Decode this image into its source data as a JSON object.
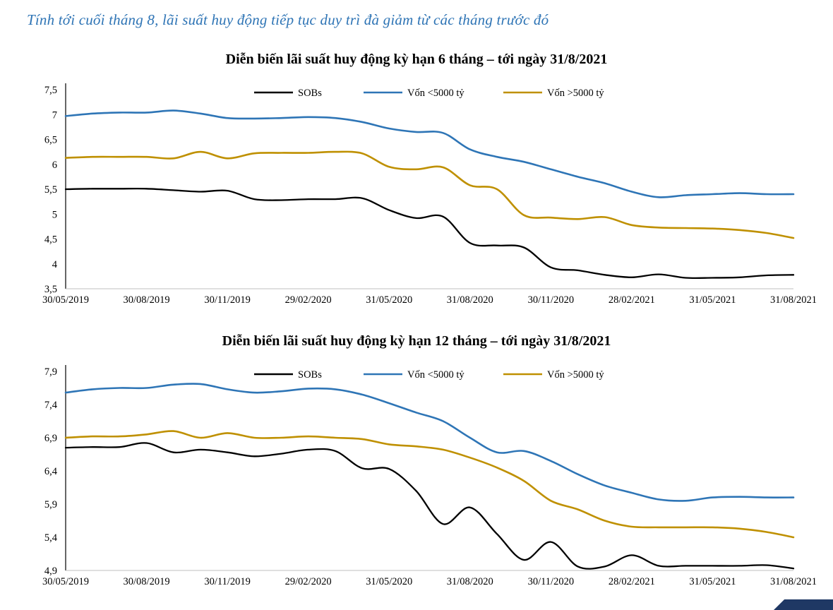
{
  "header": {
    "title": "Tính tới cuối tháng 8, lãi suất huy động tiếp tục duy trì đà giảm từ các tháng trước đó"
  },
  "colors": {
    "header_text": "#2E74B5",
    "sobs_line": "#000000",
    "under5000_line": "#2E75B6",
    "over5000_line": "#BF9000",
    "footer_bar": "#1F3864",
    "axis": "#000000"
  },
  "chart_data": [
    {
      "type": "line",
      "title": "Diễn biến lãi suất huy động kỳ hạn 6 tháng – tới ngày 31/8/2021",
      "xlabel": "",
      "ylabel": "",
      "grid": false,
      "legend_position": "top-center",
      "ylim": [
        3.5,
        7.5
      ],
      "y_ticks": [
        3.5,
        4,
        4.5,
        5,
        5.5,
        6,
        6.5,
        7,
        7.5
      ],
      "y_tick_labels": [
        "3,5",
        "4",
        "4,5",
        "5",
        "5,5",
        "6",
        "6,5",
        "7",
        "7,5"
      ],
      "x_tick_labels": [
        "30/05/2019",
        "30/08/2019",
        "30/11/2019",
        "29/02/2020",
        "31/05/2020",
        "31/08/2020",
        "30/11/2020",
        "28/02/2021",
        "31/05/2021",
        "31/08/2021"
      ],
      "series": [
        {
          "name": "SOBs",
          "color": "#000000",
          "values": [
            5.5,
            5.51,
            5.51,
            5.51,
            5.48,
            5.45,
            5.47,
            5.3,
            5.28,
            5.3,
            5.3,
            5.32,
            5.08,
            4.92,
            4.95,
            4.42,
            4.37,
            4.33,
            3.93,
            3.87,
            3.78,
            3.73,
            3.79,
            3.72,
            3.72,
            3.73,
            3.77,
            3.78
          ]
        },
        {
          "name": "Vốn <5000 tỷ",
          "color": "#2E75B6",
          "values": [
            6.97,
            7.02,
            7.04,
            7.04,
            7.08,
            7.02,
            6.93,
            6.92,
            6.93,
            6.95,
            6.93,
            6.85,
            6.72,
            6.65,
            6.63,
            6.3,
            6.15,
            6.05,
            5.9,
            5.75,
            5.62,
            5.45,
            5.34,
            5.38,
            5.4,
            5.42,
            5.4,
            5.4
          ]
        },
        {
          "name": "Vốn >5000 tỷ",
          "color": "#BF9000",
          "values": [
            6.13,
            6.15,
            6.15,
            6.15,
            6.12,
            6.25,
            6.12,
            6.22,
            6.23,
            6.23,
            6.25,
            6.22,
            5.95,
            5.9,
            5.94,
            5.58,
            5.5,
            4.98,
            4.93,
            4.9,
            4.94,
            4.78,
            4.73,
            4.72,
            4.71,
            4.68,
            4.62,
            4.52
          ]
        }
      ]
    },
    {
      "type": "line",
      "title": "Diễn biến lãi suất huy động kỳ hạn 12 tháng – tới ngày 31/8/2021",
      "xlabel": "",
      "ylabel": "",
      "grid": false,
      "legend_position": "top-center",
      "ylim": [
        4.9,
        7.9
      ],
      "y_ticks": [
        4.9,
        5.4,
        5.9,
        6.4,
        6.9,
        7.4,
        7.9
      ],
      "y_tick_labels": [
        "4,9",
        "5,4",
        "5,9",
        "6,4",
        "6,9",
        "7,4",
        "7,9"
      ],
      "x_tick_labels": [
        "30/05/2019",
        "30/08/2019",
        "30/11/2019",
        "29/02/2020",
        "31/05/2020",
        "31/08/2020",
        "30/11/2020",
        "28/02/2021",
        "31/05/2021",
        "31/08/2021"
      ],
      "series": [
        {
          "name": "SOBs",
          "color": "#000000",
          "values": [
            6.75,
            6.76,
            6.76,
            6.82,
            6.68,
            6.72,
            6.68,
            6.62,
            6.66,
            6.72,
            6.7,
            6.44,
            6.43,
            6.1,
            5.6,
            5.85,
            5.45,
            5.06,
            5.33,
            4.96,
            4.96,
            5.13,
            4.97,
            4.97,
            4.97,
            4.97,
            4.98,
            4.93
          ]
        },
        {
          "name": "Vốn <5000 tỷ",
          "color": "#2E75B6",
          "values": [
            7.58,
            7.63,
            7.65,
            7.65,
            7.7,
            7.71,
            7.63,
            7.58,
            7.6,
            7.64,
            7.63,
            7.55,
            7.42,
            7.28,
            7.15,
            6.9,
            6.68,
            6.7,
            6.55,
            6.35,
            6.18,
            6.07,
            5.97,
            5.95,
            6.0,
            6.01,
            6.0,
            6.0
          ]
        },
        {
          "name": "Vốn >5000 tỷ",
          "color": "#BF9000",
          "values": [
            6.9,
            6.92,
            6.92,
            6.95,
            7.0,
            6.9,
            6.97,
            6.9,
            6.9,
            6.92,
            6.9,
            6.88,
            6.8,
            6.77,
            6.72,
            6.6,
            6.45,
            6.25,
            5.95,
            5.82,
            5.65,
            5.56,
            5.55,
            5.55,
            5.55,
            5.53,
            5.48,
            5.4
          ]
        }
      ]
    }
  ]
}
